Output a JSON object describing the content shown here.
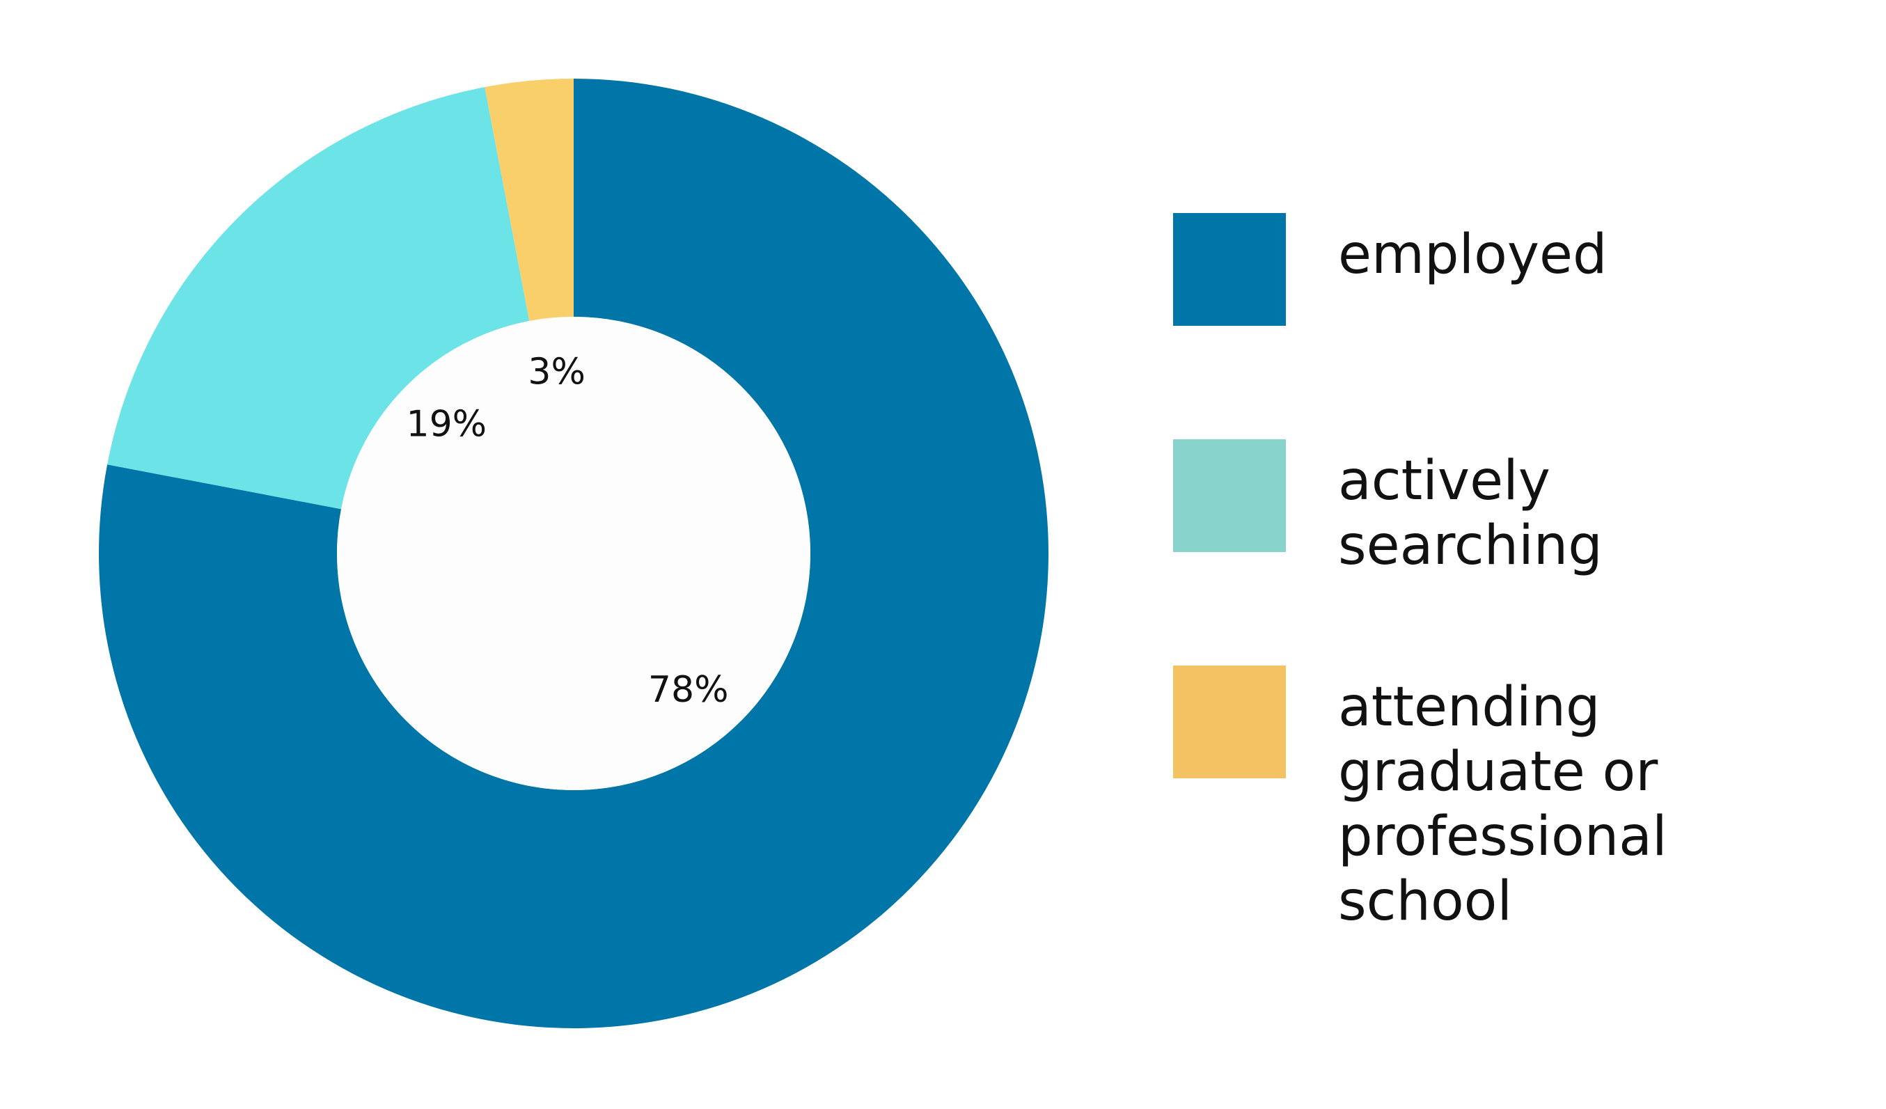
{
  "chart_data": {
    "type": "donut",
    "categories": [
      "employed",
      "actively searching",
      "attending graduate or professional school"
    ],
    "values": [
      78,
      19,
      3
    ],
    "value_labels": [
      "78%",
      "19%",
      "3%"
    ],
    "colors": [
      "#0075a8",
      "#6ce3e6",
      "#f9cf69"
    ],
    "legend_colors": [
      "#0075a8",
      "#88d3cc",
      "#f4c262"
    ],
    "legend": "right"
  }
}
